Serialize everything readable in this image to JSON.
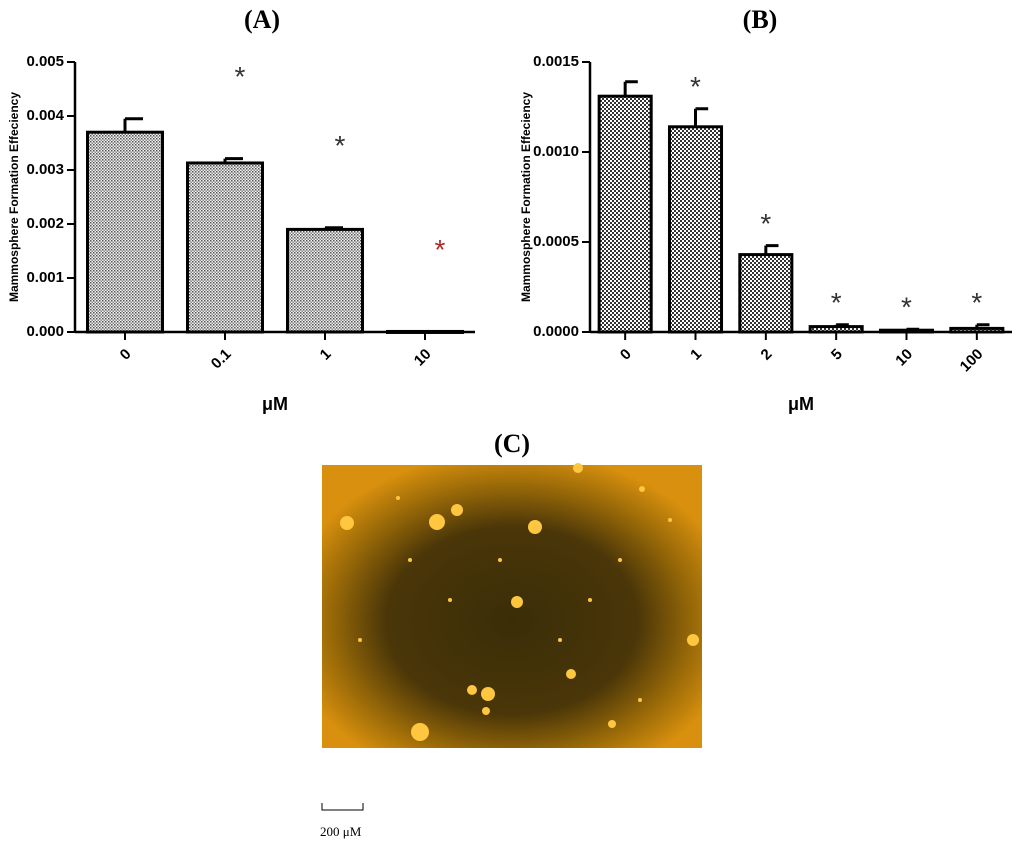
{
  "chart_data": [
    {
      "type": "bar",
      "title": "(A)",
      "y_label": "Mammosphere Formation Effeciency",
      "x_label": "μM",
      "categories": [
        "0",
        "0.1",
        "1",
        "10"
      ],
      "values": [
        0.0037,
        0.00313,
        0.0019,
        1e-05
      ],
      "errors": [
        0.00025,
        8e-05,
        3e-05,
        0
      ],
      "annotations": [
        null,
        "*",
        "*",
        "*"
      ],
      "annotation_colors": [
        null,
        "#333333",
        "#333333",
        "#a52a2a"
      ],
      "color": "#555555",
      "ylim": [
        0,
        0.005
      ],
      "yticks": [
        {
          "value": 0,
          "label": "0.000"
        },
        0.001,
        0.002,
        0.003,
        0.004,
        0.005
      ]
    },
    {
      "type": "bar",
      "title": "(B)",
      "y_label": "Mammosphere Formation Effeciency",
      "x_label": "μM",
      "categories": [
        "0",
        "1",
        "2",
        "5",
        "10",
        "100"
      ],
      "values": [
        0.00131,
        0.00114,
        0.00043,
        3e-05,
        1e-05,
        2e-05
      ],
      "errors": [
        8e-05,
        0.0001,
        5e-05,
        1e-05,
        5e-06,
        2e-05
      ],
      "annotations": [
        null,
        "*",
        "*",
        "*",
        "*",
        "*"
      ],
      "annotation_colors": [
        null,
        "#333333",
        "#333333",
        "#333333",
        "#333333",
        "#333333"
      ],
      "color": "#444444",
      "ylim": [
        0,
        0.0015
      ],
      "yticks": [
        {
          "value": 0,
          "label": "0.0000"
        },
        0.0005,
        {
          "value": 0.001,
          "label": "0.0010"
        },
        0.0015
      ]
    }
  ],
  "panel_c": {
    "label": "(C)",
    "scale_label": "200 μM"
  }
}
